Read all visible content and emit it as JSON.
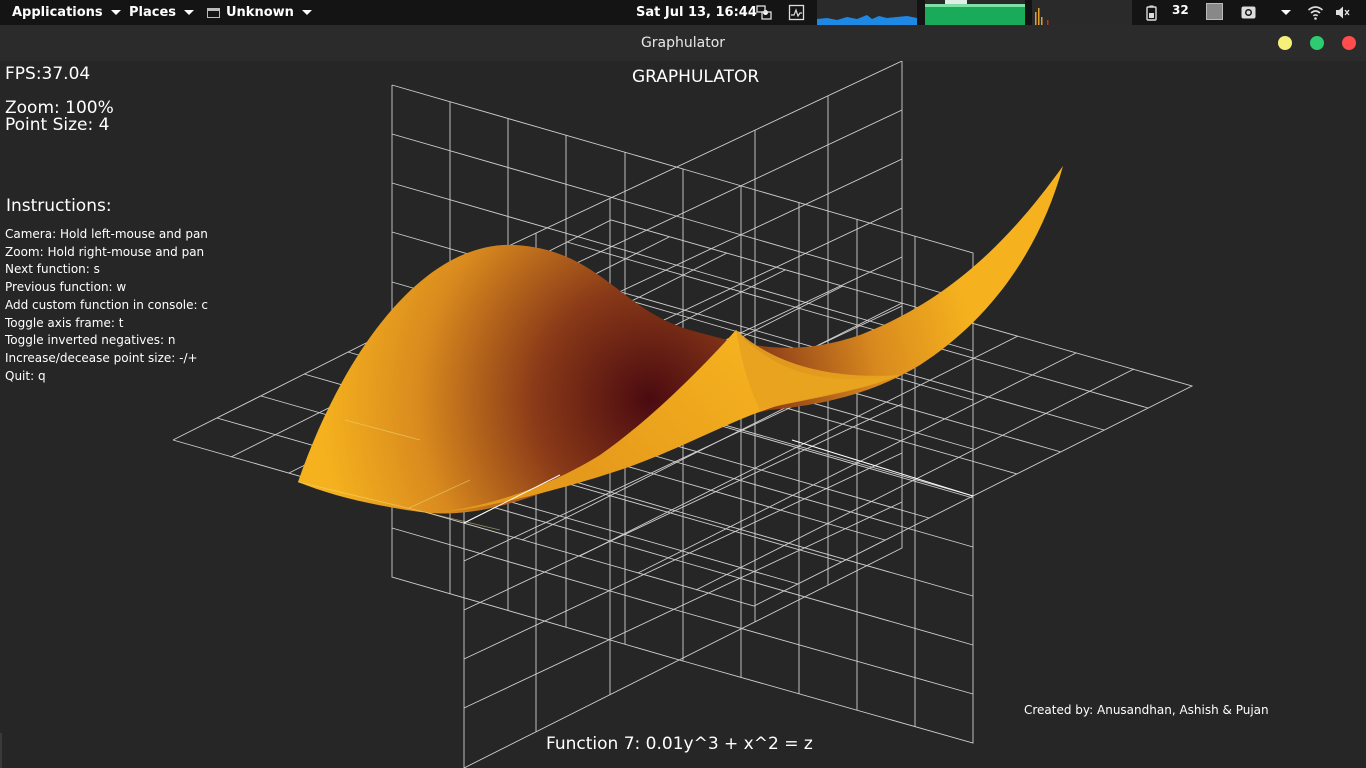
{
  "top_panel": {
    "applications_label": "Applications",
    "places_label": "Places",
    "unknown_label": "Unknown",
    "clock": "Sat Jul 13, 16:44",
    "battery_value": "32"
  },
  "window": {
    "title": "Graphulator",
    "colors": {
      "minimize": "#f5f07a",
      "maximize": "#2ecc71",
      "close": "#ff4d4d"
    }
  },
  "hud": {
    "fps": "FPS:37.04",
    "zoom": "Zoom: 100%",
    "point_size": "Point Size: 4",
    "app_title": "GRAPHULATOR",
    "instructions_title": "Instructions:",
    "instructions": [
      "Camera:  Hold left-mouse and pan",
      "Zoom:  Hold right-mouse and pan",
      "Next function:  s",
      "Previous function:  w",
      "Add custom function in console:  c",
      "Toggle axis frame:  t",
      "Toggle inverted negatives:  n",
      "Increase/decease point size:  -/+",
      "Quit: q"
    ],
    "credits": "Created by: Anusandhan, Ashish & Pujan",
    "function_label": "Function 7: 0.01y^3 + x^2 = z"
  },
  "surface_colors": {
    "light": "#f5b21e",
    "dark": "#4a0a10"
  }
}
